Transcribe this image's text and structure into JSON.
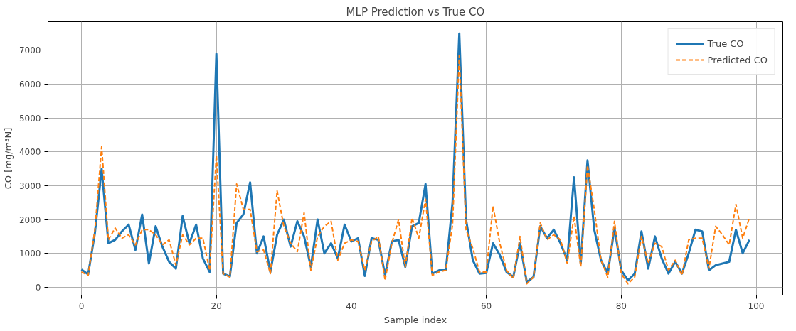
{
  "chart_data": {
    "type": "line",
    "title": "MLP Prediction vs True CO",
    "xlabel": "Sample index",
    "ylabel": "CO [mg/m³N]",
    "x": [
      0,
      1,
      2,
      3,
      4,
      5,
      6,
      7,
      8,
      9,
      10,
      11,
      12,
      13,
      14,
      15,
      16,
      17,
      18,
      19,
      20,
      21,
      22,
      23,
      24,
      25,
      26,
      27,
      28,
      29,
      30,
      31,
      32,
      33,
      34,
      35,
      36,
      37,
      38,
      39,
      40,
      41,
      42,
      43,
      44,
      45,
      46,
      47,
      48,
      49,
      50,
      51,
      52,
      53,
      54,
      55,
      56,
      57,
      58,
      59,
      60,
      61,
      62,
      63,
      64,
      65,
      66,
      67,
      68,
      69,
      70,
      71,
      72,
      73,
      74,
      75,
      76,
      77,
      78,
      79,
      80,
      81,
      82,
      83,
      84,
      85,
      86,
      87,
      88,
      89,
      90,
      91,
      92,
      93,
      94,
      95,
      96,
      97,
      98,
      99
    ],
    "series": [
      {
        "name": "True CO",
        "color": "#1f77b4",
        "line_style": "solid",
        "values": [
          520,
          380,
          1600,
          3500,
          1300,
          1400,
          1650,
          1850,
          1100,
          2150,
          700,
          1800,
          1200,
          750,
          550,
          2100,
          1300,
          1850,
          850,
          450,
          6900,
          400,
          320,
          1900,
          2150,
          3100,
          1000,
          1500,
          450,
          1550,
          2000,
          1200,
          1950,
          1500,
          600,
          2000,
          1000,
          1300,
          850,
          1850,
          1350,
          1450,
          330,
          1450,
          1400,
          350,
          1350,
          1400,
          600,
          1800,
          1900,
          3050,
          400,
          500,
          500,
          2500,
          7500,
          2000,
          800,
          400,
          420,
          1300,
          950,
          450,
          300,
          1300,
          150,
          300,
          1800,
          1450,
          1700,
          1300,
          800,
          3250,
          700,
          3750,
          1700,
          800,
          400,
          1750,
          500,
          200,
          400,
          1650,
          550,
          1500,
          850,
          400,
          750,
          400,
          1000,
          1700,
          1650,
          500,
          650,
          700,
          750,
          1700,
          1000,
          1400
        ]
      },
      {
        "name": "Predicted CO",
        "color": "#ff7f0e",
        "line_style": "dashed",
        "values": [
          450,
          350,
          1700,
          4150,
          1400,
          1750,
          1450,
          1550,
          1250,
          1700,
          1700,
          1550,
          1250,
          1400,
          650,
          1550,
          1250,
          1450,
          1450,
          500,
          3900,
          400,
          300,
          3050,
          2300,
          2300,
          1050,
          1100,
          400,
          2850,
          1800,
          1300,
          1050,
          2200,
          500,
          1500,
          1800,
          1950,
          800,
          1300,
          1400,
          1350,
          500,
          1350,
          1500,
          200,
          1300,
          2000,
          600,
          2050,
          1450,
          2600,
          350,
          450,
          500,
          1850,
          6850,
          1700,
          1150,
          450,
          450,
          2400,
          1300,
          500,
          250,
          1500,
          100,
          300,
          1900,
          1400,
          1550,
          1400,
          700,
          2100,
          600,
          3600,
          2300,
          800,
          300,
          1950,
          400,
          100,
          300,
          1500,
          700,
          1300,
          1200,
          500,
          800,
          350,
          1400,
          1450,
          1450,
          550,
          1800,
          1550,
          1250,
          2450,
          1450,
          2050
        ]
      }
    ],
    "xlim": [
      -4.95,
      103.95
    ],
    "ylim": [
      -235,
      7850
    ],
    "xticks": [
      0,
      20,
      40,
      60,
      80,
      100
    ],
    "yticks": [
      0,
      1000,
      2000,
      3000,
      4000,
      5000,
      6000,
      7000
    ],
    "grid": true,
    "legend": "top right",
    "marker": "none"
  }
}
